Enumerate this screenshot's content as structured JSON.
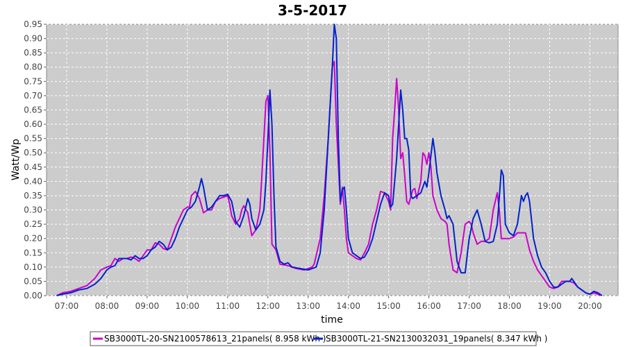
{
  "chart_data": {
    "type": "line",
    "title": "3-5-2017",
    "xlabel": "time",
    "ylabel": "Watt/Wp",
    "x_unit": "hour",
    "xlim": [
      6.5,
      20.7
    ],
    "ylim": [
      0,
      0.95
    ],
    "y_ticks": [
      0.0,
      0.05,
      0.1,
      0.15,
      0.2,
      0.25,
      0.3,
      0.35,
      0.4,
      0.45,
      0.5,
      0.55,
      0.6,
      0.65,
      0.7,
      0.75,
      0.8,
      0.85,
      0.9,
      0.95
    ],
    "y_tick_labels": [
      "0.00",
      "0.05",
      "0.10",
      "0.15",
      "0.20",
      "0.25",
      "0.30",
      "0.35",
      "0.40",
      "0.45",
      "0.50",
      "0.55",
      "0.60",
      "0.65",
      "0.70",
      "0.75",
      "0.80",
      "0.85",
      "0.90",
      "0.95"
    ],
    "x_ticks": [
      7,
      8,
      9,
      10,
      11,
      12,
      13,
      14,
      15,
      16,
      17,
      18,
      19,
      20
    ],
    "x_tick_labels": [
      "07:00",
      "08:00",
      "09:00",
      "10:00",
      "11:00",
      "12:00",
      "13:00",
      "14:00",
      "15:00",
      "16:00",
      "17:00",
      "18:00",
      "19:00",
      "20:00"
    ],
    "grid": true,
    "legend_position": "bottom",
    "series": [
      {
        "name": "SB3000TL-20-SN2100578613_21panels( 8.958 kWh )",
        "color": "#cc00cc",
        "points": [
          [
            6.75,
            0.0
          ],
          [
            6.9,
            0.01
          ],
          [
            7.1,
            0.015
          ],
          [
            7.3,
            0.025
          ],
          [
            7.5,
            0.035
          ],
          [
            7.7,
            0.06
          ],
          [
            7.85,
            0.09
          ],
          [
            8.0,
            0.1
          ],
          [
            8.1,
            0.105
          ],
          [
            8.2,
            0.13
          ],
          [
            8.3,
            0.12
          ],
          [
            8.4,
            0.13
          ],
          [
            8.5,
            0.13
          ],
          [
            8.6,
            0.135
          ],
          [
            8.7,
            0.13
          ],
          [
            8.8,
            0.12
          ],
          [
            8.9,
            0.14
          ],
          [
            9.0,
            0.16
          ],
          [
            9.1,
            0.16
          ],
          [
            9.2,
            0.185
          ],
          [
            9.3,
            0.18
          ],
          [
            9.4,
            0.165
          ],
          [
            9.5,
            0.16
          ],
          [
            9.6,
            0.2
          ],
          [
            9.7,
            0.24
          ],
          [
            9.8,
            0.27
          ],
          [
            9.9,
            0.3
          ],
          [
            10.0,
            0.31
          ],
          [
            10.05,
            0.31
          ],
          [
            10.1,
            0.35
          ],
          [
            10.2,
            0.365
          ],
          [
            10.3,
            0.34
          ],
          [
            10.4,
            0.29
          ],
          [
            10.5,
            0.3
          ],
          [
            10.6,
            0.3
          ],
          [
            10.7,
            0.33
          ],
          [
            10.8,
            0.34
          ],
          [
            10.9,
            0.345
          ],
          [
            11.0,
            0.35
          ],
          [
            11.05,
            0.32
          ],
          [
            11.1,
            0.28
          ],
          [
            11.2,
            0.25
          ],
          [
            11.3,
            0.27
          ],
          [
            11.35,
            0.3
          ],
          [
            11.4,
            0.315
          ],
          [
            11.5,
            0.29
          ],
          [
            11.6,
            0.21
          ],
          [
            11.7,
            0.23
          ],
          [
            11.8,
            0.3
          ],
          [
            11.85,
            0.42
          ],
          [
            11.9,
            0.55
          ],
          [
            11.95,
            0.68
          ],
          [
            12.0,
            0.7
          ],
          [
            12.05,
            0.5
          ],
          [
            12.1,
            0.18
          ],
          [
            12.2,
            0.16
          ],
          [
            12.3,
            0.11
          ],
          [
            12.5,
            0.105
          ],
          [
            12.7,
            0.095
          ],
          [
            12.9,
            0.09
          ],
          [
            13.0,
            0.095
          ],
          [
            13.1,
            0.1
          ],
          [
            13.15,
            0.11
          ],
          [
            13.3,
            0.2
          ],
          [
            13.4,
            0.35
          ],
          [
            13.5,
            0.55
          ],
          [
            13.6,
            0.8
          ],
          [
            13.65,
            0.82
          ],
          [
            13.7,
            0.6
          ],
          [
            13.8,
            0.32
          ],
          [
            13.85,
            0.38
          ],
          [
            13.9,
            0.3
          ],
          [
            13.95,
            0.2
          ],
          [
            14.0,
            0.15
          ],
          [
            14.1,
            0.14
          ],
          [
            14.2,
            0.13
          ],
          [
            14.3,
            0.125
          ],
          [
            14.4,
            0.15
          ],
          [
            14.5,
            0.18
          ],
          [
            14.6,
            0.25
          ],
          [
            14.7,
            0.3
          ],
          [
            14.8,
            0.365
          ],
          [
            14.9,
            0.36
          ],
          [
            15.0,
            0.33
          ],
          [
            15.05,
            0.3
          ],
          [
            15.1,
            0.55
          ],
          [
            15.15,
            0.65
          ],
          [
            15.2,
            0.76
          ],
          [
            15.25,
            0.65
          ],
          [
            15.3,
            0.48
          ],
          [
            15.35,
            0.5
          ],
          [
            15.4,
            0.42
          ],
          [
            15.45,
            0.33
          ],
          [
            15.5,
            0.32
          ],
          [
            15.6,
            0.37
          ],
          [
            15.65,
            0.375
          ],
          [
            15.7,
            0.34
          ],
          [
            15.8,
            0.4
          ],
          [
            15.85,
            0.5
          ],
          [
            15.9,
            0.49
          ],
          [
            15.95,
            0.46
          ],
          [
            16.0,
            0.5
          ],
          [
            16.05,
            0.45
          ],
          [
            16.1,
            0.35
          ],
          [
            16.2,
            0.3
          ],
          [
            16.3,
            0.27
          ],
          [
            16.4,
            0.26
          ],
          [
            16.45,
            0.25
          ],
          [
            16.5,
            0.18
          ],
          [
            16.6,
            0.09
          ],
          [
            16.7,
            0.08
          ],
          [
            16.8,
            0.15
          ],
          [
            16.9,
            0.25
          ],
          [
            17.0,
            0.26
          ],
          [
            17.05,
            0.25
          ],
          [
            17.1,
            0.22
          ],
          [
            17.2,
            0.18
          ],
          [
            17.3,
            0.19
          ],
          [
            17.4,
            0.19
          ],
          [
            17.5,
            0.2
          ],
          [
            17.6,
            0.3
          ],
          [
            17.7,
            0.36
          ],
          [
            17.75,
            0.3
          ],
          [
            17.8,
            0.2
          ],
          [
            17.9,
            0.2
          ],
          [
            18.0,
            0.2
          ],
          [
            18.1,
            0.205
          ],
          [
            18.2,
            0.22
          ],
          [
            18.3,
            0.22
          ],
          [
            18.4,
            0.22
          ],
          [
            18.45,
            0.19
          ],
          [
            18.5,
            0.16
          ],
          [
            18.6,
            0.12
          ],
          [
            18.7,
            0.09
          ],
          [
            18.8,
            0.07
          ],
          [
            18.9,
            0.05
          ],
          [
            19.0,
            0.03
          ],
          [
            19.1,
            0.025
          ],
          [
            19.2,
            0.03
          ],
          [
            19.3,
            0.05
          ],
          [
            19.4,
            0.05
          ],
          [
            19.5,
            0.05
          ],
          [
            19.6,
            0.045
          ],
          [
            19.7,
            0.03
          ],
          [
            19.8,
            0.02
          ],
          [
            19.9,
            0.01
          ],
          [
            20.0,
            0.005
          ],
          [
            20.1,
            0.01
          ],
          [
            20.2,
            0.005
          ],
          [
            20.25,
            0.0
          ]
        ]
      },
      {
        "name": "SB3000TL-21-SN2130032031_19panels( 8.347 kWh )",
        "color": "#0022cc",
        "points": [
          [
            6.75,
            0.0
          ],
          [
            6.9,
            0.005
          ],
          [
            7.1,
            0.01
          ],
          [
            7.3,
            0.02
          ],
          [
            7.5,
            0.025
          ],
          [
            7.7,
            0.04
          ],
          [
            7.85,
            0.06
          ],
          [
            8.0,
            0.09
          ],
          [
            8.1,
            0.1
          ],
          [
            8.2,
            0.105
          ],
          [
            8.3,
            0.13
          ],
          [
            8.4,
            0.13
          ],
          [
            8.5,
            0.13
          ],
          [
            8.6,
            0.125
          ],
          [
            8.7,
            0.14
          ],
          [
            8.8,
            0.13
          ],
          [
            8.9,
            0.13
          ],
          [
            9.0,
            0.14
          ],
          [
            9.1,
            0.16
          ],
          [
            9.2,
            0.17
          ],
          [
            9.3,
            0.19
          ],
          [
            9.4,
            0.18
          ],
          [
            9.5,
            0.16
          ],
          [
            9.6,
            0.17
          ],
          [
            9.7,
            0.2
          ],
          [
            9.8,
            0.24
          ],
          [
            9.9,
            0.27
          ],
          [
            10.0,
            0.3
          ],
          [
            10.1,
            0.31
          ],
          [
            10.2,
            0.33
          ],
          [
            10.3,
            0.38
          ],
          [
            10.35,
            0.41
          ],
          [
            10.4,
            0.38
          ],
          [
            10.5,
            0.3
          ],
          [
            10.6,
            0.31
          ],
          [
            10.7,
            0.33
          ],
          [
            10.8,
            0.35
          ],
          [
            10.9,
            0.35
          ],
          [
            11.0,
            0.355
          ],
          [
            11.1,
            0.33
          ],
          [
            11.2,
            0.26
          ],
          [
            11.3,
            0.24
          ],
          [
            11.4,
            0.28
          ],
          [
            11.5,
            0.34
          ],
          [
            11.55,
            0.32
          ],
          [
            11.6,
            0.27
          ],
          [
            11.7,
            0.23
          ],
          [
            11.8,
            0.25
          ],
          [
            11.9,
            0.3
          ],
          [
            11.95,
            0.4
          ],
          [
            12.0,
            0.55
          ],
          [
            12.05,
            0.72
          ],
          [
            12.1,
            0.6
          ],
          [
            12.15,
            0.35
          ],
          [
            12.2,
            0.17
          ],
          [
            12.3,
            0.12
          ],
          [
            12.4,
            0.11
          ],
          [
            12.5,
            0.115
          ],
          [
            12.6,
            0.1
          ],
          [
            12.8,
            0.095
          ],
          [
            13.0,
            0.09
          ],
          [
            13.1,
            0.095
          ],
          [
            13.2,
            0.1
          ],
          [
            13.3,
            0.15
          ],
          [
            13.4,
            0.3
          ],
          [
            13.5,
            0.55
          ],
          [
            13.6,
            0.8
          ],
          [
            13.65,
            0.95
          ],
          [
            13.7,
            0.9
          ],
          [
            13.75,
            0.55
          ],
          [
            13.8,
            0.33
          ],
          [
            13.85,
            0.37
          ],
          [
            13.9,
            0.38
          ],
          [
            13.95,
            0.3
          ],
          [
            14.0,
            0.2
          ],
          [
            14.1,
            0.15
          ],
          [
            14.2,
            0.14
          ],
          [
            14.3,
            0.13
          ],
          [
            14.4,
            0.135
          ],
          [
            14.5,
            0.16
          ],
          [
            14.6,
            0.2
          ],
          [
            14.7,
            0.26
          ],
          [
            14.8,
            0.32
          ],
          [
            14.9,
            0.36
          ],
          [
            15.0,
            0.35
          ],
          [
            15.05,
            0.31
          ],
          [
            15.1,
            0.32
          ],
          [
            15.2,
            0.48
          ],
          [
            15.3,
            0.72
          ],
          [
            15.35,
            0.65
          ],
          [
            15.4,
            0.55
          ],
          [
            15.45,
            0.55
          ],
          [
            15.5,
            0.51
          ],
          [
            15.55,
            0.35
          ],
          [
            15.6,
            0.34
          ],
          [
            15.7,
            0.35
          ],
          [
            15.8,
            0.36
          ],
          [
            15.9,
            0.4
          ],
          [
            15.95,
            0.38
          ],
          [
            16.0,
            0.43
          ],
          [
            16.1,
            0.55
          ],
          [
            16.15,
            0.5
          ],
          [
            16.2,
            0.43
          ],
          [
            16.3,
            0.35
          ],
          [
            16.4,
            0.3
          ],
          [
            16.45,
            0.27
          ],
          [
            16.5,
            0.28
          ],
          [
            16.6,
            0.25
          ],
          [
            16.7,
            0.12
          ],
          [
            16.8,
            0.08
          ],
          [
            16.9,
            0.08
          ],
          [
            17.0,
            0.2
          ],
          [
            17.1,
            0.27
          ],
          [
            17.2,
            0.3
          ],
          [
            17.3,
            0.25
          ],
          [
            17.4,
            0.19
          ],
          [
            17.5,
            0.185
          ],
          [
            17.6,
            0.19
          ],
          [
            17.7,
            0.25
          ],
          [
            17.8,
            0.44
          ],
          [
            17.85,
            0.42
          ],
          [
            17.9,
            0.25
          ],
          [
            18.0,
            0.22
          ],
          [
            18.1,
            0.21
          ],
          [
            18.2,
            0.25
          ],
          [
            18.3,
            0.35
          ],
          [
            18.35,
            0.33
          ],
          [
            18.4,
            0.35
          ],
          [
            18.45,
            0.36
          ],
          [
            18.5,
            0.33
          ],
          [
            18.6,
            0.2
          ],
          [
            18.7,
            0.14
          ],
          [
            18.8,
            0.1
          ],
          [
            18.9,
            0.08
          ],
          [
            19.0,
            0.05
          ],
          [
            19.1,
            0.03
          ],
          [
            19.2,
            0.03
          ],
          [
            19.3,
            0.04
          ],
          [
            19.4,
            0.05
          ],
          [
            19.5,
            0.05
          ],
          [
            19.55,
            0.06
          ],
          [
            19.6,
            0.05
          ],
          [
            19.7,
            0.03
          ],
          [
            19.8,
            0.02
          ],
          [
            19.9,
            0.01
          ],
          [
            20.0,
            0.005
          ],
          [
            20.1,
            0.015
          ],
          [
            20.2,
            0.01
          ],
          [
            20.3,
            0.0
          ]
        ]
      }
    ]
  }
}
